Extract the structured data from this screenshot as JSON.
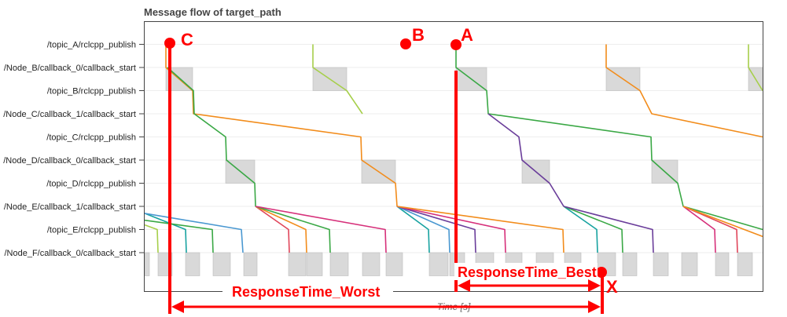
{
  "chart_data": {
    "type": "line",
    "title": "Message flow of target_path",
    "xlabel": "Time [s]",
    "ylabel": "",
    "y_categories": [
      "/topic_A/rclcpp_publish",
      "/Node_B/callback_0/callback_start",
      "/topic_B/rclcpp_publish",
      "/Node_C/callback_1/callback_start",
      "/topic_C/rclcpp_publish",
      "/Node_D/callback_0/callback_start",
      "/topic_D/rclcpp_publish",
      "/Node_E/callback_1/callback_start",
      "/topic_E/rclcpp_publish",
      "/Node_F/callback_0/callback_start"
    ],
    "annotations": {
      "point_a": "A",
      "point_b": "B",
      "point_c": "C",
      "point_x": "X",
      "response_time_best": "ResponseTime_Best",
      "response_time_worst": "ResponseTime_Worst"
    },
    "colors": {
      "annotation": "#ff0000",
      "callback_box": "#d9d9d9",
      "orange": "#f28c1b",
      "green": "#3aa845",
      "purple": "#6a3d9a",
      "lime": "#a6cf4a",
      "teal": "#17a2a0",
      "blue": "#4a98d1",
      "red": "#e0455a",
      "magenta": "#d6307a"
    },
    "callback_boxes": [
      {
        "lane": 1,
        "x0": 211,
        "x1": 245
      },
      {
        "lane": 1,
        "x0": 398,
        "x1": 441
      },
      {
        "lane": 1,
        "x0": 580,
        "x1": 619
      },
      {
        "lane": 1,
        "x0": 771,
        "x1": 814
      },
      {
        "lane": 1,
        "x0": 952,
        "x1": 970
      },
      {
        "lane": 5,
        "x0": 287,
        "x1": 324
      },
      {
        "lane": 5,
        "x0": 460,
        "x1": 503
      },
      {
        "lane": 5,
        "x0": 664,
        "x1": 699
      },
      {
        "lane": 5,
        "x0": 829,
        "x1": 862
      },
      {
        "lane": 9,
        "x0": 184,
        "x1": 190
      },
      {
        "lane": 9,
        "x0": 201,
        "x1": 219
      },
      {
        "lane": 9,
        "x0": 236,
        "x1": 254
      },
      {
        "lane": 9,
        "x0": 271,
        "x1": 293
      },
      {
        "lane": 9,
        "x0": 310,
        "x1": 327
      },
      {
        "lane": 9,
        "x0": 367,
        "x1": 389
      },
      {
        "lane": 9,
        "x0": 390,
        "x1": 410
      },
      {
        "lane": 9,
        "x0": 420,
        "x1": 443
      },
      {
        "lane": 9,
        "x0": 461,
        "x1": 483
      },
      {
        "lane": 9,
        "x0": 491,
        "x1": 512
      },
      {
        "lane": 9,
        "x0": 546,
        "x1": 570
      },
      {
        "lane": 9,
        "x0": 572,
        "x1": 591
      },
      {
        "lane": 9,
        "x0": 605,
        "x1": 628
      },
      {
        "lane": 9,
        "x0": 643,
        "x1": 664
      },
      {
        "lane": 9,
        "x0": 682,
        "x1": 704
      },
      {
        "lane": 9,
        "x0": 718,
        "x1": 739
      },
      {
        "lane": 9,
        "x0": 760,
        "x1": 783
      },
      {
        "lane": 9,
        "x0": 792,
        "x1": 810
      },
      {
        "lane": 9,
        "x0": 831,
        "x1": 850
      },
      {
        "lane": 9,
        "x0": 867,
        "x1": 887
      },
      {
        "lane": 9,
        "x0": 910,
        "x1": 927
      },
      {
        "lane": 9,
        "x0": 938,
        "x1": 957
      }
    ],
    "flows": [
      {
        "color": "orange",
        "points": [
          [
            211,
            0
          ],
          [
            211,
            1
          ],
          [
            245,
            2
          ],
          [
            246,
            3
          ],
          [
            459,
            4
          ],
          [
            460,
            5
          ],
          [
            503,
            6
          ],
          [
            505,
            7
          ]
        ]
      },
      {
        "color": "green",
        "points": [
          [
            213,
            1
          ],
          [
            246,
            2
          ],
          [
            247,
            3
          ],
          [
            287,
            4
          ],
          [
            288,
            5
          ],
          [
            324,
            6
          ],
          [
            325,
            7
          ]
        ]
      },
      {
        "color": "lime",
        "points": [
          [
            398,
            0
          ],
          [
            398,
            1
          ],
          [
            441,
            2
          ],
          [
            461,
            3
          ]
        ]
      },
      {
        "color": "green",
        "points": [
          [
            580,
            0
          ],
          [
            580,
            1
          ],
          [
            619,
            2
          ],
          [
            621,
            3
          ],
          [
            828,
            4
          ],
          [
            829,
            5
          ],
          [
            862,
            6
          ],
          [
            869,
            7
          ]
        ]
      },
      {
        "color": "purple",
        "points": [
          [
            621,
            3
          ],
          [
            660,
            4
          ],
          [
            664,
            5
          ],
          [
            699,
            6
          ],
          [
            717,
            7
          ]
        ]
      },
      {
        "color": "orange",
        "points": [
          [
            771,
            0
          ],
          [
            771,
            1
          ],
          [
            814,
            2
          ],
          [
            829,
            3
          ],
          [
            970,
            4
          ]
        ]
      },
      {
        "color": "lime",
        "points": [
          [
            952,
            0
          ],
          [
            952,
            1
          ],
          [
            970,
            2
          ]
        ]
      },
      {
        "color": "teal",
        "points": [
          [
            184,
            7.3
          ],
          [
            236,
            8
          ],
          [
            237,
            9
          ]
        ]
      },
      {
        "color": "blue",
        "points": [
          [
            184,
            7.3
          ],
          [
            307,
            8
          ],
          [
            309,
            9
          ]
        ]
      },
      {
        "color": "green",
        "points": [
          [
            184,
            7.6
          ],
          [
            270,
            8
          ],
          [
            271,
            9
          ]
        ]
      },
      {
        "color": "lime",
        "points": [
          [
            184,
            7.8
          ],
          [
            200,
            8
          ],
          [
            201,
            9
          ]
        ]
      },
      {
        "color": "red",
        "points": [
          [
            325,
            7
          ],
          [
            367,
            8
          ],
          [
            368,
            9
          ]
        ]
      },
      {
        "color": "orange",
        "points": [
          [
            325,
            7
          ],
          [
            389,
            8
          ],
          [
            390,
            9
          ]
        ]
      },
      {
        "color": "green",
        "points": [
          [
            325,
            7
          ],
          [
            419,
            8
          ],
          [
            420,
            9
          ]
        ]
      },
      {
        "color": "magenta",
        "points": [
          [
            325,
            7
          ],
          [
            490,
            8
          ],
          [
            491,
            9
          ]
        ]
      },
      {
        "color": "teal",
        "points": [
          [
            505,
            7
          ],
          [
            545,
            8
          ],
          [
            546,
            9
          ]
        ]
      },
      {
        "color": "blue",
        "points": [
          [
            505,
            7
          ],
          [
            571,
            8
          ],
          [
            572,
            9
          ]
        ]
      },
      {
        "color": "purple",
        "points": [
          [
            505,
            7
          ],
          [
            604,
            8
          ],
          [
            605,
            9
          ]
        ]
      },
      {
        "color": "magenta",
        "points": [
          [
            505,
            7
          ],
          [
            642,
            8
          ],
          [
            643,
            9
          ]
        ]
      },
      {
        "color": "orange",
        "points": [
          [
            505,
            7
          ],
          [
            716,
            8
          ],
          [
            717,
            9
          ]
        ]
      },
      {
        "color": "teal",
        "points": [
          [
            717,
            7
          ],
          [
            759,
            8
          ],
          [
            760,
            9
          ]
        ]
      },
      {
        "color": "green",
        "points": [
          [
            717,
            7
          ],
          [
            791,
            8
          ],
          [
            792,
            9
          ]
        ]
      },
      {
        "color": "purple",
        "points": [
          [
            717,
            7
          ],
          [
            830,
            8
          ],
          [
            831,
            9
          ]
        ]
      },
      {
        "color": "magenta",
        "points": [
          [
            869,
            7
          ],
          [
            909,
            8
          ],
          [
            910,
            9
          ]
        ]
      },
      {
        "color": "red",
        "points": [
          [
            869,
            7
          ],
          [
            937,
            8
          ],
          [
            938,
            9
          ]
        ]
      },
      {
        "color": "green",
        "points": [
          [
            869,
            7
          ],
          [
            970,
            8
          ]
        ]
      },
      {
        "color": "orange",
        "points": [
          [
            869,
            7
          ],
          [
            970,
            8.3
          ]
        ]
      }
    ]
  }
}
